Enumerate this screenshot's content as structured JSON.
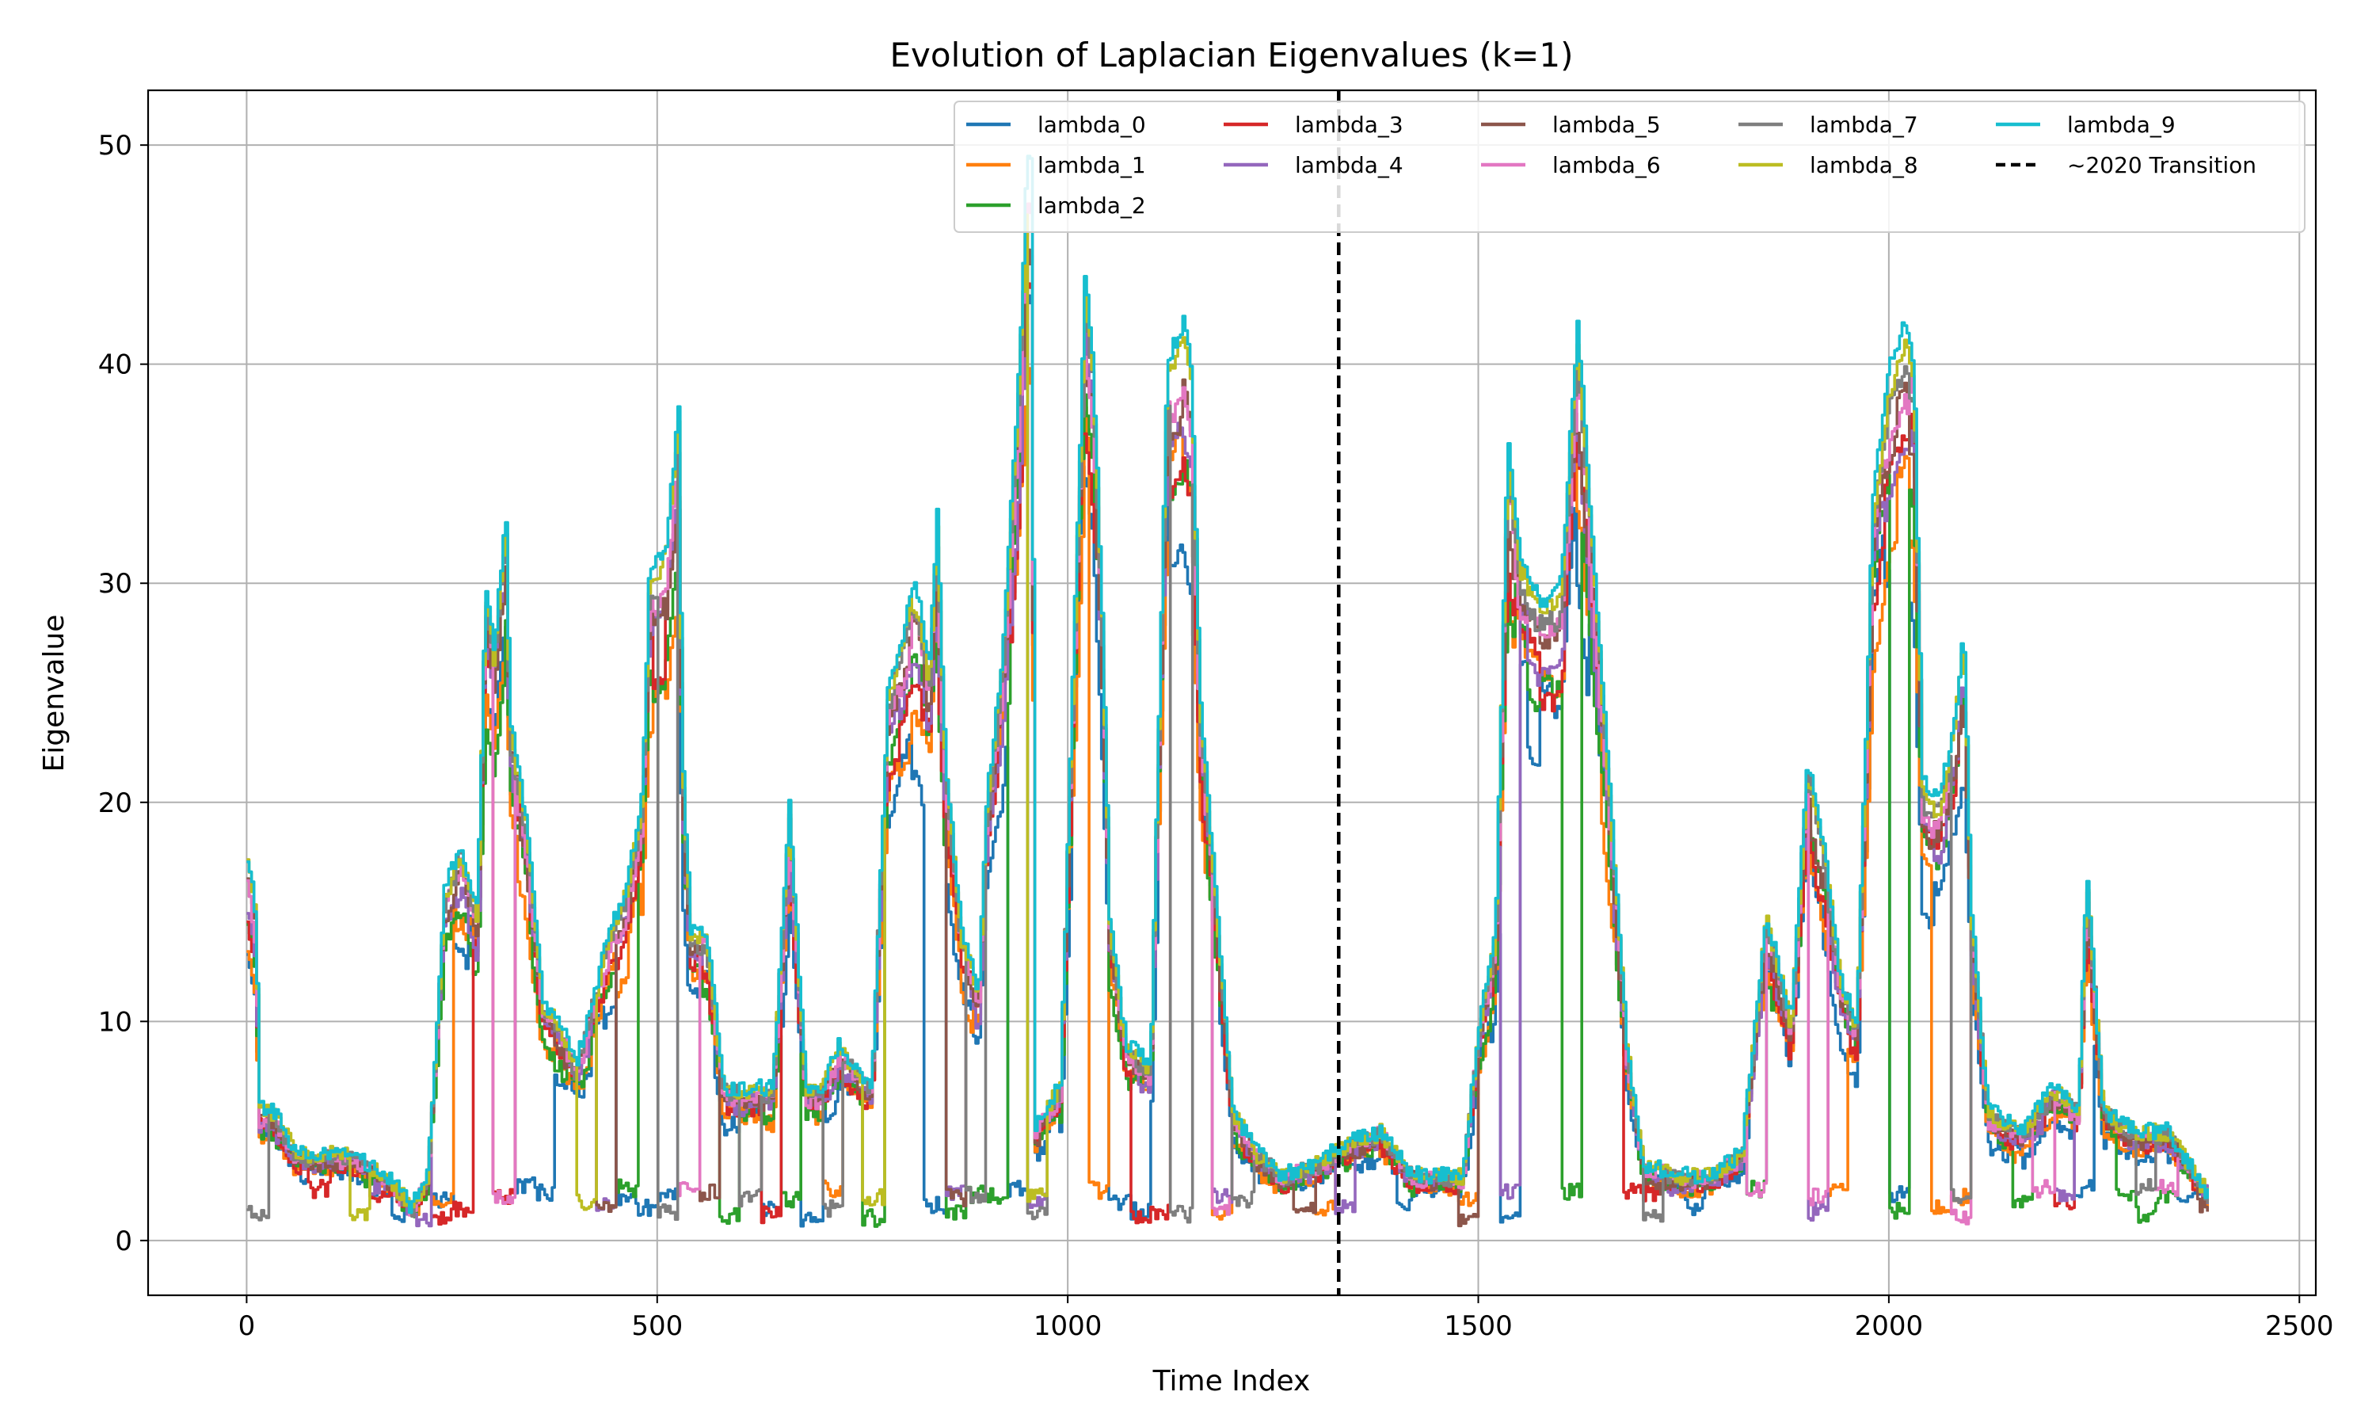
{
  "chart_data": {
    "type": "line",
    "title": "Evolution of Laplacian Eigenvalues (k=1)",
    "xlabel": "Time Index",
    "ylabel": "Eigenvalue",
    "xlim": [
      -120,
      2520
    ],
    "ylim": [
      -2.5,
      52.5
    ],
    "xticks": [
      0,
      500,
      1000,
      1500,
      2000,
      2500
    ],
    "yticks": [
      0,
      10,
      20,
      30,
      40,
      50
    ],
    "grid": true,
    "legend_position": "top-right",
    "legend_columns": 5,
    "vline": {
      "x": 1330,
      "label": "~2020 Transition",
      "color": "#000000",
      "style": "dashed"
    },
    "envelope_x": [
      0,
      10,
      15,
      30,
      60,
      90,
      120,
      150,
      180,
      200,
      220,
      240,
      260,
      280,
      290,
      300,
      310,
      315,
      320,
      340,
      360,
      380,
      400,
      420,
      440,
      460,
      480,
      490,
      500,
      510,
      520,
      525,
      530,
      540,
      560,
      580,
      600,
      640,
      660,
      680,
      700,
      720,
      740,
      760,
      780,
      800,
      810,
      820,
      830,
      840,
      850,
      870,
      880,
      890,
      900,
      920,
      940,
      950,
      955,
      960,
      970,
      990,
      1020,
      1030,
      1040,
      1050,
      1070,
      1100,
      1120,
      1130,
      1140,
      1150,
      1160,
      1200,
      1230,
      1260,
      1300,
      1340,
      1380,
      1420,
      1460,
      1480,
      1500,
      1520,
      1535,
      1550,
      1580,
      1600,
      1620,
      1640,
      1660,
      1680,
      1700,
      1740,
      1780,
      1820,
      1850,
      1880,
      1900,
      1920,
      1940,
      1960,
      1980,
      2000,
      2020,
      2030,
      2040,
      2060,
      2080,
      2090,
      2100,
      2120,
      2160,
      2200,
      2230,
      2240,
      2260,
      2300,
      2340,
      2390
    ],
    "envelope_y": [
      17.5,
      15,
      6,
      6,
      4,
      4,
      4,
      3.5,
      2.5,
      1.5,
      3,
      16,
      18,
      15,
      30,
      27,
      31,
      33,
      24,
      19,
      11,
      10,
      8,
      11,
      14,
      16,
      20,
      31,
      31,
      32,
      36,
      38,
      22,
      14,
      14,
      7,
      7,
      7,
      20,
      7,
      7,
      9,
      8,
      7,
      25,
      28,
      30,
      29,
      26,
      33,
      22,
      14,
      13,
      11,
      20,
      27,
      40,
      50,
      49,
      5,
      6,
      7,
      44,
      40,
      30,
      15,
      9,
      8,
      40,
      41,
      42,
      40,
      25,
      6,
      4,
      3,
      3.5,
      4.5,
      5,
      3,
      3,
      3,
      10,
      14,
      37,
      31,
      29,
      30,
      42,
      31,
      20,
      9,
      3.5,
      3,
      3,
      4,
      15,
      10,
      22,
      18,
      12,
      10,
      34,
      40,
      42,
      40,
      21,
      20,
      24,
      28,
      15,
      6,
      5,
      7,
      6,
      17,
      6,
      5,
      5,
      2
    ],
    "series": [
      {
        "name": "lambda_0",
        "color": "#1f77b4",
        "scale": 0.7
      },
      {
        "name": "lambda_1",
        "color": "#ff7f0e",
        "scale": 0.75
      },
      {
        "name": "lambda_2",
        "color": "#2ca02c",
        "scale": 0.78
      },
      {
        "name": "lambda_3",
        "color": "#d62728",
        "scale": 0.82
      },
      {
        "name": "lambda_4",
        "color": "#9467bd",
        "scale": 0.85
      },
      {
        "name": "lambda_5",
        "color": "#8c564b",
        "scale": 0.88
      },
      {
        "name": "lambda_6",
        "color": "#e377c2",
        "scale": 0.91
      },
      {
        "name": "lambda_7",
        "color": "#7f7f7f",
        "scale": 0.94
      },
      {
        "name": "lambda_8",
        "color": "#bcbd22",
        "scale": 0.97
      },
      {
        "name": "lambda_9",
        "color": "#17becf",
        "scale": 1.0
      }
    ]
  }
}
